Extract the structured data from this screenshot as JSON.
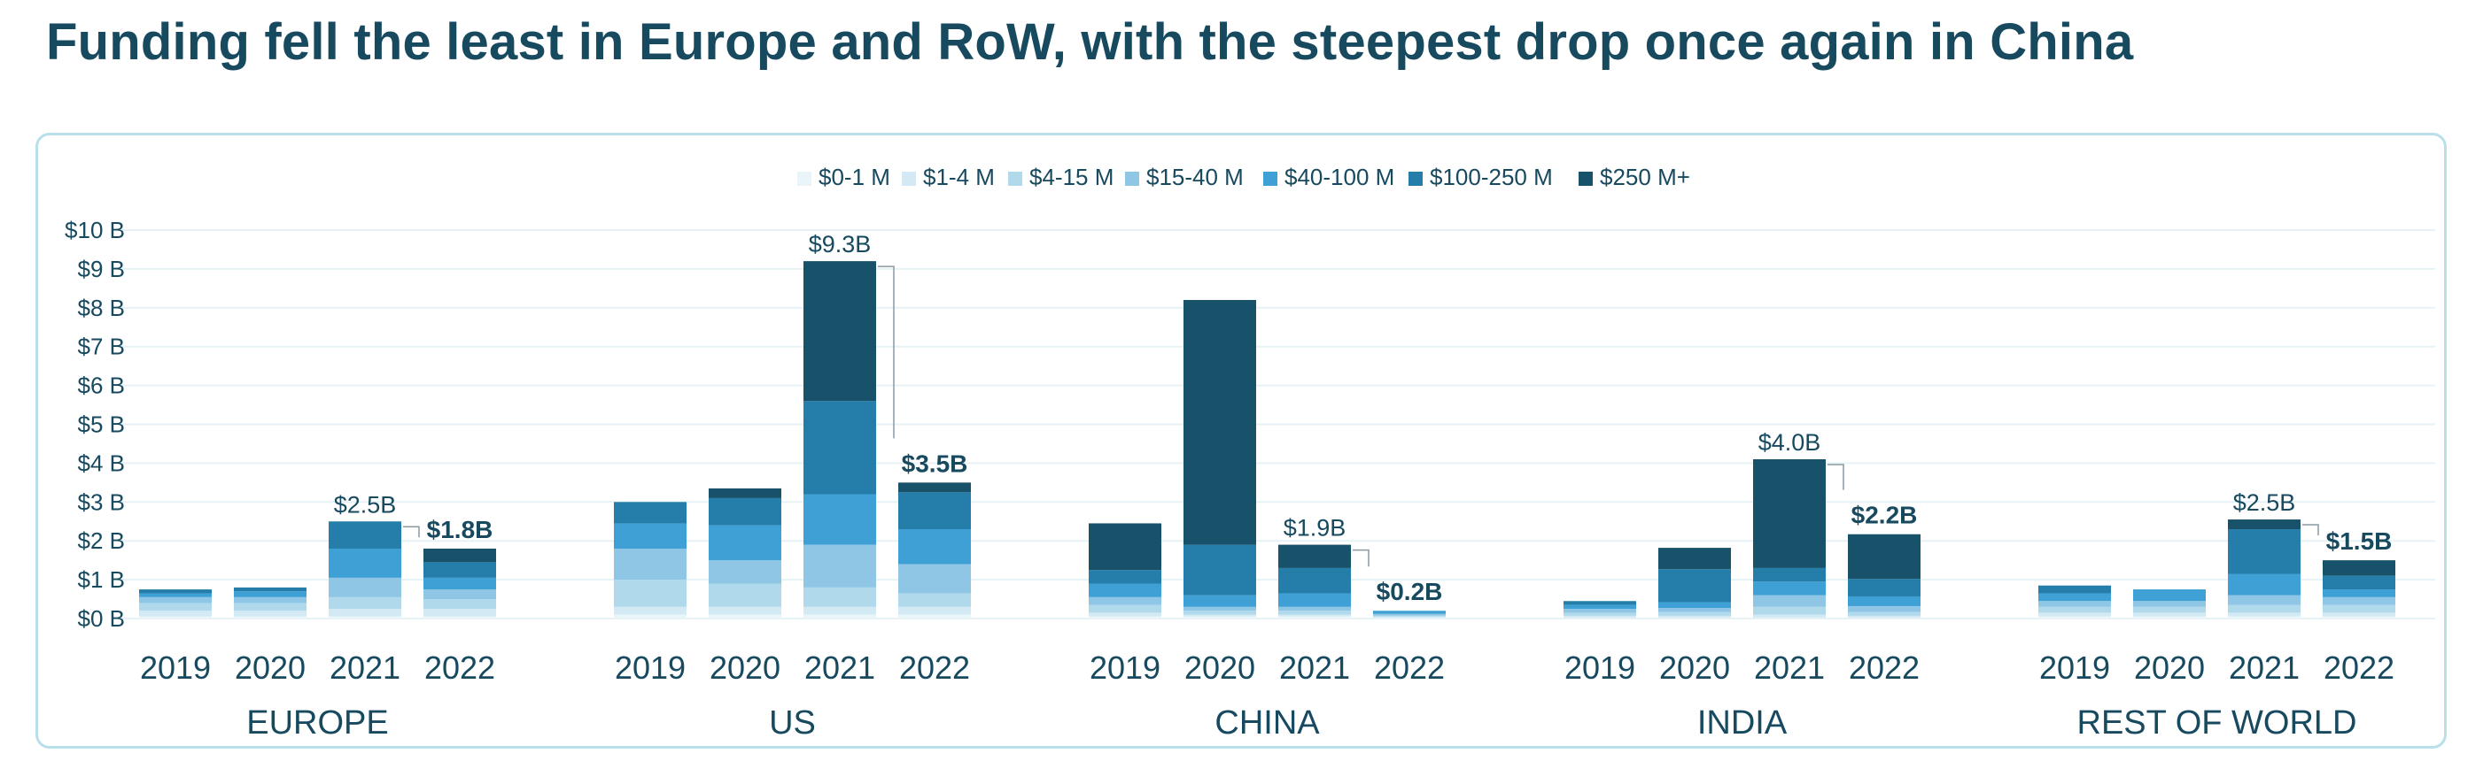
{
  "title": "Funding fell the least in Europe and RoW, with the steepest drop once again in China",
  "colors": {
    "title": "#17495f",
    "text": "#17495f",
    "grid": "#e6f2f5",
    "panel_border": "#b8dfea"
  },
  "chart_data": {
    "type": "bar",
    "stacked": true,
    "y_unit_prefix": "$",
    "yticks": [
      "$0 B",
      "$1 B",
      "$2 B",
      "$3 B",
      "$4 B",
      "$5 B",
      "$6 B",
      "$7 B",
      "$8 B",
      "$9 B",
      "$10 B"
    ],
    "ylim": [
      0,
      10
    ],
    "grid": true,
    "legend_position": "top-center",
    "series": [
      {
        "name": "$0-1 M",
        "color": "#e9f5f9"
      },
      {
        "name": "$1-4 M",
        "color": "#d3eaf5"
      },
      {
        "name": "$4-15 M",
        "color": "#b1d9ec"
      },
      {
        "name": "$15-40 M",
        "color": "#8fc6e5"
      },
      {
        "name": "$40-100 M",
        "color": "#3fa0d6"
      },
      {
        "name": "$100-250 M",
        "color": "#257ea9"
      },
      {
        "name": "$250 M+",
        "color": "#18516a"
      }
    ],
    "groups": [
      {
        "name": "EUROPE",
        "bars": [
          {
            "year": "2019",
            "values": [
              0.05,
              0.15,
              0.2,
              0.15,
              0.1,
              0.1,
              0.0
            ]
          },
          {
            "year": "2020",
            "values": [
              0.05,
              0.15,
              0.2,
              0.15,
              0.15,
              0.1,
              0.0
            ]
          },
          {
            "year": "2021",
            "values": [
              0.05,
              0.2,
              0.3,
              0.5,
              0.75,
              0.7,
              0.0
            ],
            "label": "$2.5B"
          },
          {
            "year": "2022",
            "values": [
              0.05,
              0.2,
              0.25,
              0.25,
              0.3,
              0.4,
              0.35
            ],
            "label": "$1.8B",
            "label_bold": true
          }
        ]
      },
      {
        "name": "US",
        "bars": [
          {
            "year": "2019",
            "values": [
              0.1,
              0.2,
              0.7,
              0.8,
              0.65,
              0.55,
              0.0
            ]
          },
          {
            "year": "2020",
            "values": [
              0.1,
              0.2,
              0.6,
              0.6,
              0.9,
              0.7,
              0.25
            ]
          },
          {
            "year": "2021",
            "values": [
              0.1,
              0.2,
              0.5,
              1.1,
              1.3,
              2.4,
              3.6
            ],
            "label": "$9.3B"
          },
          {
            "year": "2022",
            "values": [
              0.1,
              0.2,
              0.35,
              0.75,
              0.9,
              0.95,
              0.25
            ],
            "label": "$3.5B",
            "label_bold": true
          }
        ]
      },
      {
        "name": "CHINA",
        "bars": [
          {
            "year": "2019",
            "values": [
              0.05,
              0.1,
              0.2,
              0.2,
              0.35,
              0.35,
              1.2
            ]
          },
          {
            "year": "2020",
            "values": [
              0.05,
              0.05,
              0.1,
              0.1,
              0.3,
              1.3,
              6.3
            ]
          },
          {
            "year": "2021",
            "values": [
              0.05,
              0.05,
              0.1,
              0.1,
              0.35,
              0.65,
              0.6
            ],
            "label": "$1.9B"
          },
          {
            "year": "2022",
            "values": [
              0.02,
              0.03,
              0.03,
              0.04,
              0.08,
              0.0,
              0.0
            ],
            "label": "$0.2B",
            "label_bold": true
          }
        ]
      },
      {
        "name": "INDIA",
        "bars": [
          {
            "year": "2019",
            "values": [
              0.02,
              0.05,
              0.08,
              0.1,
              0.1,
              0.1,
              0.0
            ]
          },
          {
            "year": "2020",
            "values": [
              0.02,
              0.05,
              0.1,
              0.1,
              0.15,
              0.85,
              0.55
            ]
          },
          {
            "year": "2021",
            "values": [
              0.02,
              0.08,
              0.2,
              0.3,
              0.35,
              0.35,
              2.8
            ],
            "label": "$4.0B"
          },
          {
            "year": "2022",
            "values": [
              0.02,
              0.05,
              0.1,
              0.15,
              0.25,
              0.45,
              1.15
            ],
            "label": "$2.2B",
            "label_bold": true
          }
        ]
      },
      {
        "name": "REST OF WORLD",
        "bars": [
          {
            "year": "2019",
            "values": [
              0.05,
              0.1,
              0.15,
              0.15,
              0.2,
              0.2,
              0.0
            ]
          },
          {
            "year": "2020",
            "values": [
              0.05,
              0.1,
              0.15,
              0.15,
              0.3,
              0.0,
              0.0
            ]
          },
          {
            "year": "2021",
            "values": [
              0.05,
              0.1,
              0.2,
              0.25,
              0.55,
              1.15,
              0.25
            ],
            "label": "$2.5B"
          },
          {
            "year": "2022",
            "values": [
              0.05,
              0.1,
              0.2,
              0.2,
              0.2,
              0.35,
              0.4
            ],
            "label": "$1.5B",
            "label_bold": true
          }
        ]
      }
    ]
  }
}
